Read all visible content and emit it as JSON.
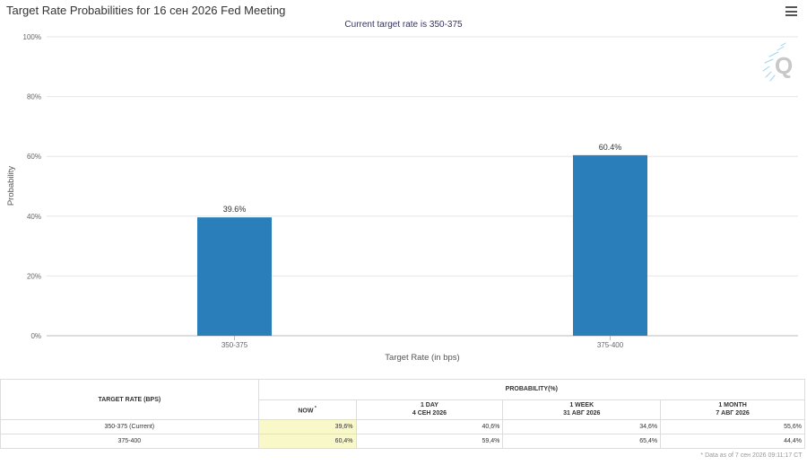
{
  "header": {
    "title": "Target Rate Probabilities for 16 сен 2026 Fed Meeting",
    "subtitle": "Current target rate is 350-375",
    "menu_icon": "hamburger-menu-icon",
    "watermark_icon": "q-logo-icon"
  },
  "chart_data": {
    "type": "bar",
    "title": "Target Rate Probabilities for 16 сен 2026 Fed Meeting",
    "subtitle": "Current target rate is 350-375",
    "categories": [
      "350-375",
      "375-400"
    ],
    "values": [
      39.6,
      60.4
    ],
    "data_labels": [
      "39.6%",
      "60.4%"
    ],
    "xlabel": "Target Rate (in bps)",
    "ylabel": "Probability",
    "ylim": [
      0,
      100
    ],
    "yticks": [
      0,
      20,
      40,
      60,
      80,
      100
    ],
    "ytick_labels": [
      "0%",
      "20%",
      "40%",
      "60%",
      "80%",
      "100%"
    ],
    "grid": true,
    "bar_color": "#2a7fba"
  },
  "table": {
    "rate_header": "TARGET RATE (BPS)",
    "prob_header": "PROBABILITY(%)",
    "columns": [
      {
        "line1": "NOW",
        "line2": "",
        "marker": "*"
      },
      {
        "line1": "1 DAY",
        "line2": "4 СЕН 2026",
        "marker": ""
      },
      {
        "line1": "1 WEEK",
        "line2": "31 АВГ 2026",
        "marker": ""
      },
      {
        "line1": "1 MONTH",
        "line2": "7 АВГ 2026",
        "marker": ""
      }
    ],
    "rows": [
      {
        "rate": "350-375 (Current)",
        "values": [
          "39,6%",
          "40,6%",
          "34,6%",
          "55,6%"
        ]
      },
      {
        "rate": "375-400",
        "values": [
          "60,4%",
          "59,4%",
          "65,4%",
          "44,4%"
        ]
      }
    ],
    "footnote": "* Data as of 7 сен 2026 09:11:17 CT",
    "highlight_color": "#f8f8c8"
  }
}
